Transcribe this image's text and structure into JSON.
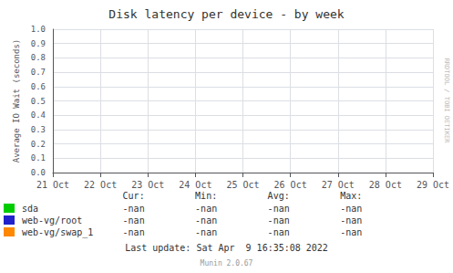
{
  "chart_data": {
    "type": "line",
    "title": "Disk latency per device - by week",
    "ylabel": "Average IO Wait (seconds)",
    "categories": [
      "21 Oct",
      "22 Oct",
      "23 Oct",
      "24 Oct",
      "25 Oct",
      "26 Oct",
      "27 Oct",
      "28 Oct",
      "29 Oct"
    ],
    "series": [
      {
        "name": "sda",
        "color": "#00cc00",
        "values": [
          null,
          null,
          null,
          null,
          null,
          null,
          null,
          null,
          null
        ]
      },
      {
        "name": "web-vg/root",
        "color": "#2222cc",
        "values": [
          null,
          null,
          null,
          null,
          null,
          null,
          null,
          null,
          null
        ]
      },
      {
        "name": "web-vg/swap_1",
        "color": "#ff8800",
        "values": [
          null,
          null,
          null,
          null,
          null,
          null,
          null,
          null,
          null
        ]
      }
    ],
    "ylim": [
      0.0,
      1.0
    ],
    "yticks": [
      {
        "value": 0,
        "label": "0.0"
      },
      0.1,
      0.2,
      0.3,
      0.4,
      0.5,
      0.6,
      0.7,
      0.8,
      0.9,
      {
        "value": 1,
        "label": "1.0"
      }
    ],
    "grid": true,
    "legend_table": {
      "headers": [
        "Cur:",
        "Min:",
        "Avg:",
        "Max:"
      ],
      "rows": [
        [
          "-nan",
          "-nan",
          "-nan",
          "-nan"
        ],
        [
          "-nan",
          "-nan",
          "-nan",
          "-nan"
        ],
        [
          "-nan",
          "-nan",
          "-nan",
          "-nan"
        ]
      ]
    },
    "annotations": [
      "Last update: Sat Apr  9 16:35:08 2022",
      "Munin 2.0.67",
      "RRDTOOL / TOBI OETIKER"
    ]
  }
}
